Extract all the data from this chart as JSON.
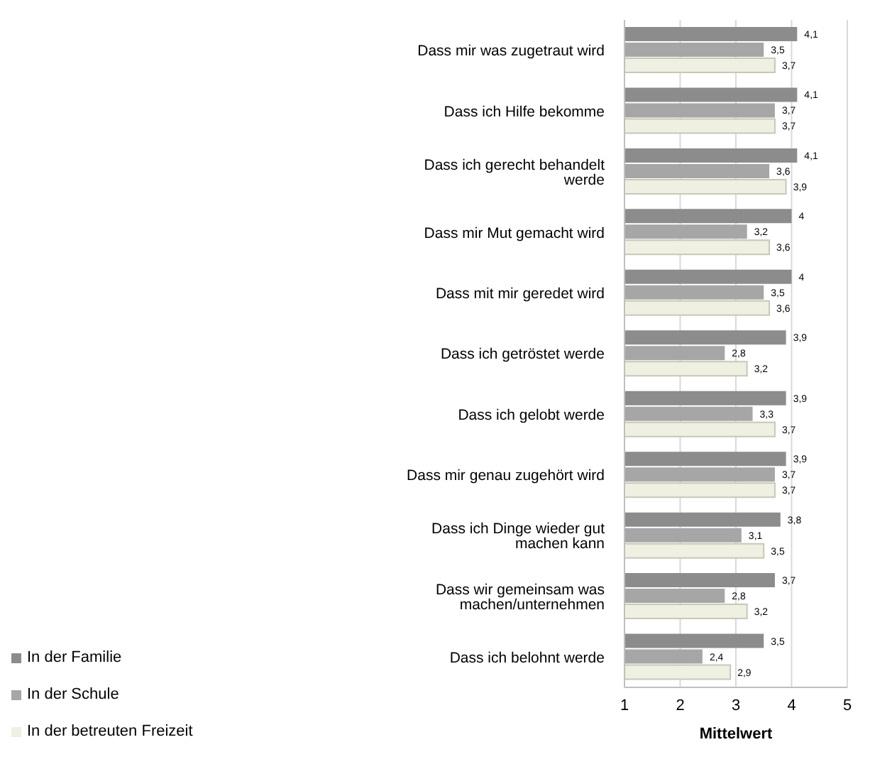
{
  "chart_data": {
    "type": "bar",
    "orientation": "horizontal",
    "xlabel": "Mittelwert",
    "categories": [
      "Dass mir was zugetraut wird",
      "Dass ich Hilfe bekomme",
      "Dass ich gerecht behandelt werde",
      "Dass mir Mut gemacht wird",
      "Dass mit mir geredet wird",
      "Dass ich getröstet werde",
      "Dass ich gelobt werde",
      "Dass mir genau zugehört wird",
      "Dass ich Dinge wieder gut machen kann",
      "Dass wir gemeinsam was machen/unternehmen",
      "Dass ich belohnt werde"
    ],
    "series": [
      {
        "name": "In der Familie",
        "color": "#8c8c8c",
        "values": [
          4.1,
          4.1,
          4.1,
          4,
          4,
          3.9,
          3.9,
          3.9,
          3.8,
          3.7,
          3.5
        ],
        "value_labels": [
          "4,1",
          "4,1",
          "4,1",
          "4",
          "4",
          "3,9",
          "3,9",
          "3,9",
          "3,8",
          "3,7",
          "3,5"
        ]
      },
      {
        "name": "In der Schule",
        "color": "#a6a6a6",
        "values": [
          3.5,
          3.7,
          3.6,
          3.2,
          3.5,
          2.8,
          3.3,
          3.7,
          3.1,
          2.8,
          2.4
        ],
        "value_labels": [
          "3,5",
          "3,7",
          "3,6",
          "3,2",
          "3,5",
          "2,8",
          "3,3",
          "3,7",
          "3,1",
          "2,8",
          "2,4"
        ]
      },
      {
        "name": "In der betreuten Freizeit",
        "color": "#efefe2",
        "values": [
          3.7,
          3.7,
          3.9,
          3.6,
          3.6,
          3.2,
          3.7,
          3.7,
          3.5,
          3.2,
          2.9
        ],
        "value_labels": [
          "3,7",
          "3,7",
          "3,9",
          "3,6",
          "3,6",
          "3,2",
          "3,7",
          "3,7",
          "3,5",
          "3,2",
          "2,9"
        ]
      }
    ],
    "xlim": [
      1,
      5
    ],
    "xticks": [
      1,
      2,
      3,
      4,
      5
    ],
    "grid": "x",
    "legend": "bottom left"
  }
}
